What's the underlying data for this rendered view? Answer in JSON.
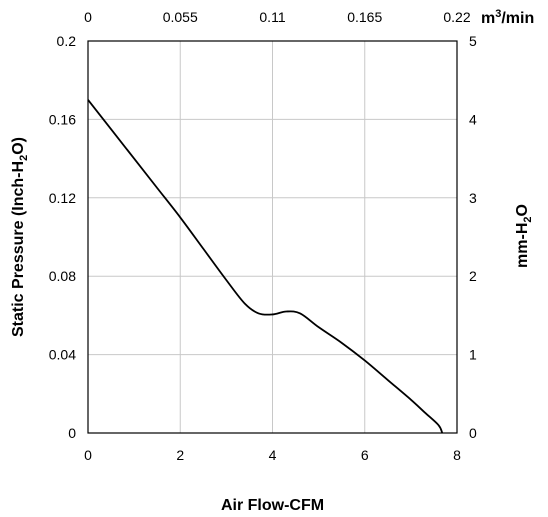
{
  "chart_data": {
    "type": "line",
    "xlabel": "Air Flow-CFM",
    "ylabel": {
      "pre": "Static Pressure (Inch-H",
      "sub": "2",
      "post": "O)"
    },
    "y2label": {
      "pre": "mm-H",
      "sub": "2",
      "post": "O"
    },
    "x2unit": {
      "pre": "m",
      "sup": "3",
      "post": "/min"
    },
    "xlim": [
      0,
      8
    ],
    "ylim": [
      0,
      0.2
    ],
    "y2lim": [
      0,
      5
    ],
    "x2lim": [
      0,
      0.22
    ],
    "x_ticks": [
      "0",
      "2",
      "4",
      "6",
      "8"
    ],
    "y_ticks": [
      "0",
      "0.04",
      "0.08",
      "0.12",
      "0.16",
      "0.2"
    ],
    "y2_ticks": [
      "0",
      "1",
      "2",
      "3",
      "4",
      "5"
    ],
    "x2_ticks": [
      "0",
      "0.055",
      "0.11",
      "0.165",
      "0.22"
    ],
    "grid": true,
    "series": [
      {
        "x": [
          0,
          0.5,
          1.0,
          1.5,
          2.0,
          2.5,
          3.0,
          3.4,
          3.7,
          4.0,
          4.3,
          4.6,
          5.0,
          5.5,
          6.0,
          6.5,
          7.0,
          7.3,
          7.6,
          7.68
        ],
        "y": [
          0.17,
          0.155,
          0.14,
          0.125,
          0.11,
          0.094,
          0.078,
          0.066,
          0.061,
          0.0605,
          0.062,
          0.061,
          0.054,
          0.046,
          0.037,
          0.027,
          0.017,
          0.0105,
          0.004,
          0
        ]
      }
    ]
  }
}
